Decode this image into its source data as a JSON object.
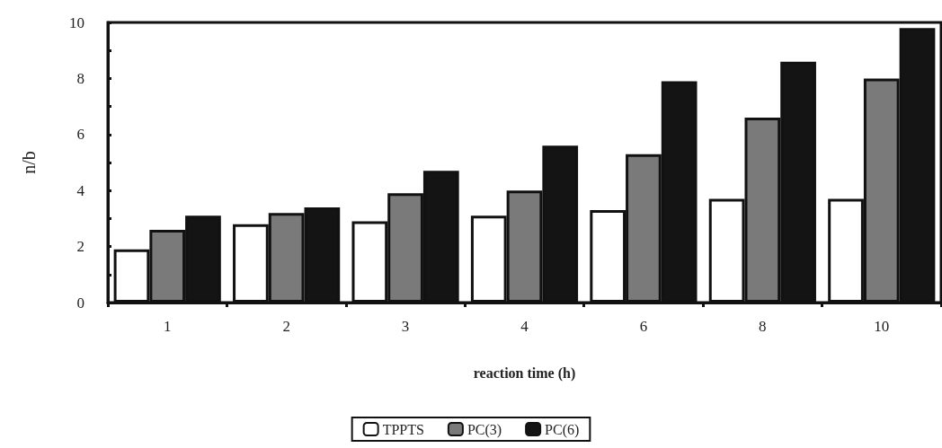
{
  "chart_data": {
    "type": "bar",
    "xlabel": "reaction time (h)",
    "ylabel": "n/b",
    "categories": [
      "1",
      "2",
      "3",
      "4",
      "6",
      "8",
      "10"
    ],
    "series": [
      {
        "name": "TPPTS",
        "color": "#ffffff",
        "values": [
          1.9,
          2.8,
          2.9,
          3.1,
          3.3,
          3.7,
          3.7
        ]
      },
      {
        "name": "PC(3)",
        "color": "#7a7a7a",
        "values": [
          2.6,
          3.2,
          3.9,
          4.0,
          5.3,
          6.6,
          8.0
        ]
      },
      {
        "name": "PC(6)",
        "color": "#141414",
        "values": [
          3.1,
          3.4,
          4.7,
          5.6,
          7.9,
          8.6,
          9.8
        ]
      }
    ],
    "ylim": [
      0,
      10
    ],
    "yticks": [
      0,
      2,
      4,
      6,
      8,
      10
    ],
    "grid": false,
    "legend": "bottom"
  }
}
